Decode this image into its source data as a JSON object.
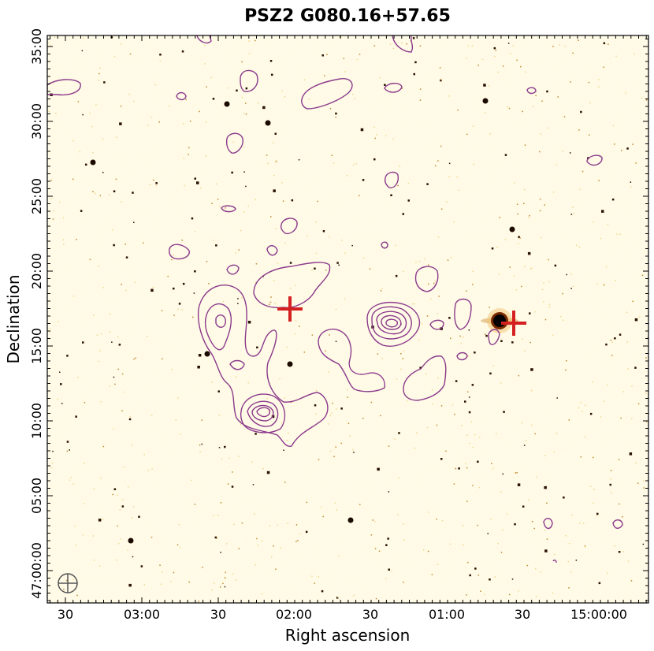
{
  "chart_data": {
    "type": "image",
    "title": "PSZ2 G080.16+57.65",
    "xlabel": "Right ascension",
    "ylabel": "Declination",
    "x_ticks": [
      "30",
      "03:00",
      "30",
      "02:00",
      "30",
      "01:00",
      "30",
      "15:00:00"
    ],
    "y_ticks": [
      "47:00:00",
      "05:00",
      "10:00",
      "15:00",
      "20:00",
      "25:00",
      "30:00",
      "35:00"
    ],
    "colors": {
      "background": "#fffbe6",
      "contour": "#8b3a8b",
      "marker": "#d42020",
      "beam": "#555555"
    },
    "markers": [
      {
        "name": "cross",
        "ra": "02:00",
        "dec": "17:00"
      },
      {
        "name": "cross",
        "ra": "00:28",
        "dec": "16:00"
      }
    ],
    "beam": "circle-with-cross"
  }
}
